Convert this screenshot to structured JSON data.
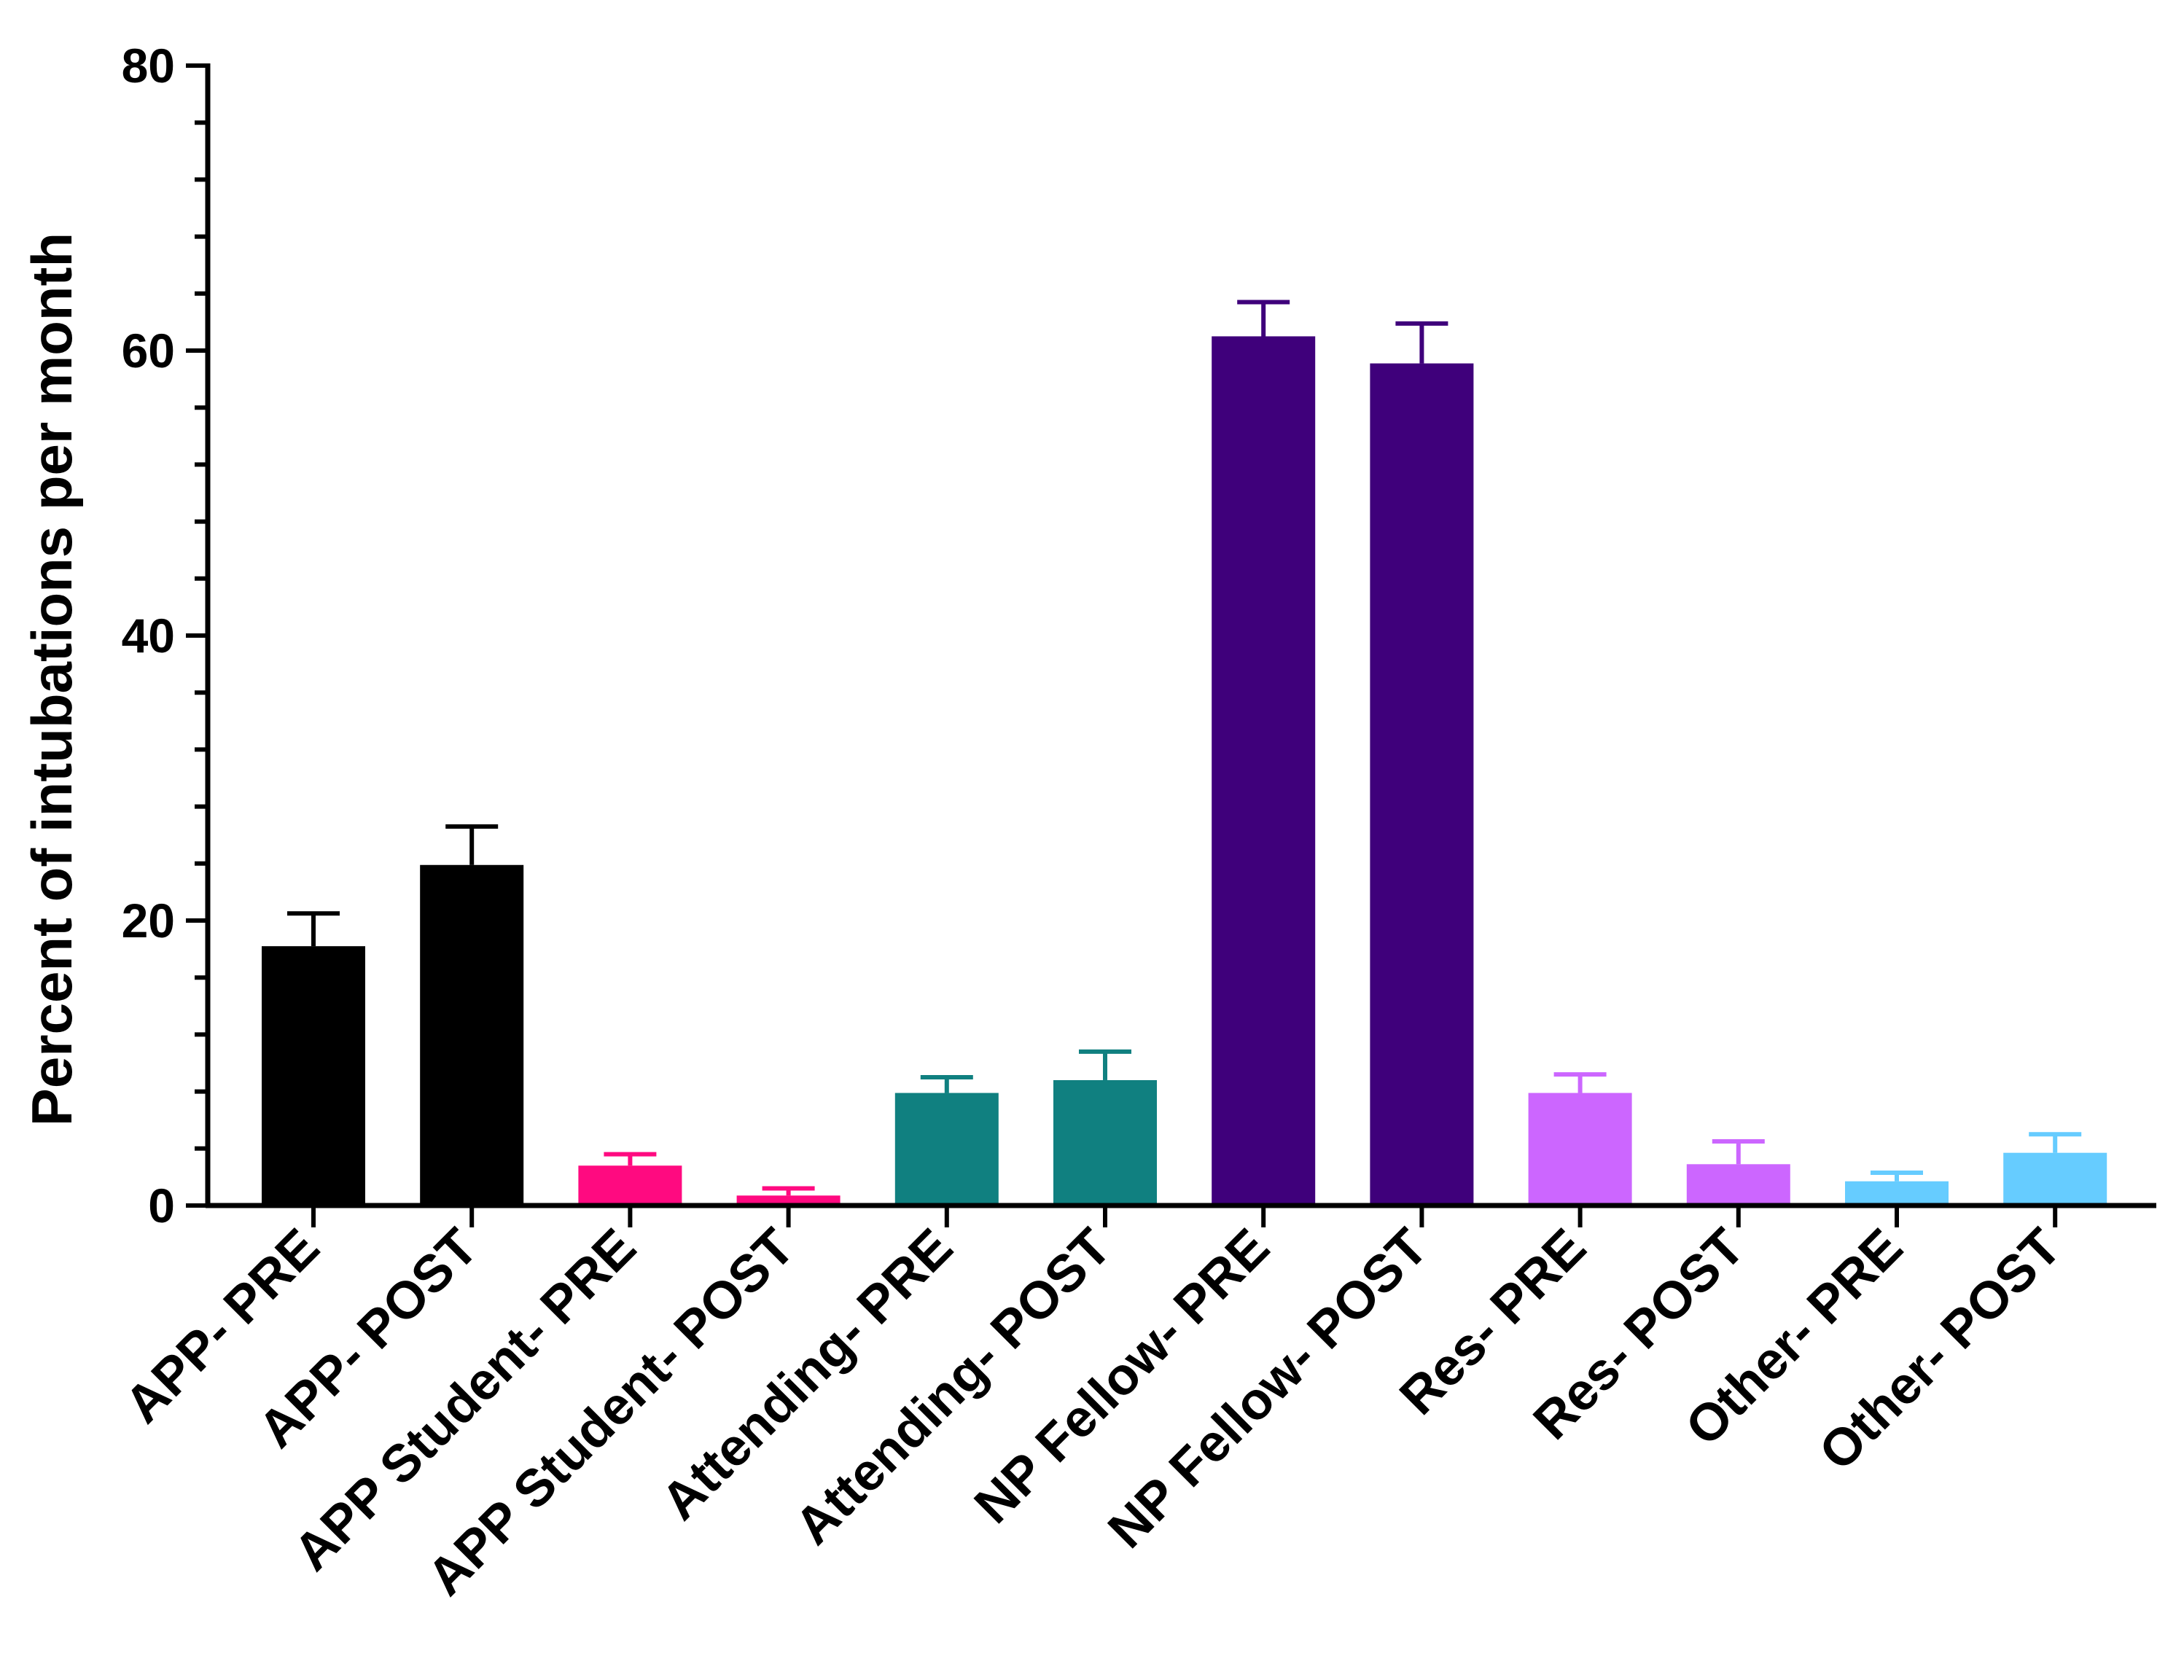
{
  "chart_data": {
    "type": "bar",
    "title": "",
    "xlabel": "",
    "ylabel": "Percent of intubations per month",
    "ylim": [
      0,
      80
    ],
    "yticks": [
      0,
      20,
      40,
      60,
      80
    ],
    "grid": false,
    "legend": "none",
    "categories": [
      "APP- PRE",
      "APP- POST",
      "APP Student- PRE",
      "APP Student- POST",
      "Attending- PRE",
      "Attending- POST",
      "NP Fellow- PRE",
      "NP Fellow- POST",
      "Res- PRE",
      "Res- POST",
      "Other- PRE",
      "Other- POST"
    ],
    "values": [
      18.2,
      23.9,
      2.8,
      0.7,
      7.9,
      8.8,
      61.0,
      59.1,
      7.9,
      2.9,
      1.7,
      3.7
    ],
    "error_upper": [
      20.5,
      26.6,
      3.6,
      1.2,
      9.0,
      10.8,
      63.4,
      61.9,
      9.2,
      4.5,
      2.3,
      5.0
    ],
    "colors": [
      "#000000",
      "#000000",
      "#ff0a80",
      "#ff0a80",
      "#108080",
      "#108080",
      "#3f007b",
      "#3f007b",
      "#cc66ff",
      "#cc66ff",
      "#66ccff",
      "#66ccff"
    ]
  }
}
